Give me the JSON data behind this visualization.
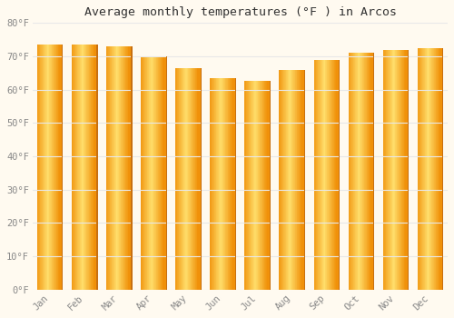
{
  "title": "Average monthly temperatures (°F ) in Arcos",
  "months": [
    "Jan",
    "Feb",
    "Mar",
    "Apr",
    "May",
    "Jun",
    "Jul",
    "Aug",
    "Sep",
    "Oct",
    "Nov",
    "Dec"
  ],
  "values": [
    73.5,
    73.5,
    73,
    70,
    66.5,
    63.5,
    62.5,
    66,
    69,
    71,
    72,
    72.5
  ],
  "bar_color_center": "#FFD166",
  "bar_color_edge": "#F5A623",
  "background_color": "#FFFAF0",
  "grid_color": "#E8E8E8",
  "tick_color": "#888888",
  "title_color": "#333333",
  "ylim": [
    0,
    80
  ],
  "ytick_step": 10,
  "font_family": "monospace",
  "bar_width": 0.75,
  "figsize": [
    5.0,
    3.5
  ],
  "dpi": 100
}
